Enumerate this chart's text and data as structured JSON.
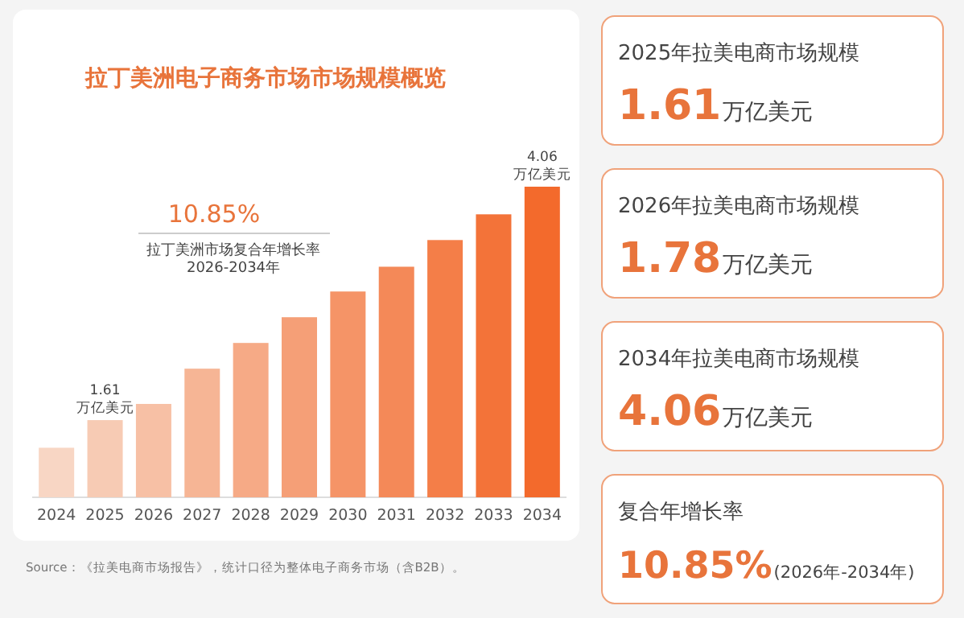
{
  "chart_data": [
    {
      "type": "bar",
      "title": "拉丁美洲电子商务市场市场规模概览",
      "ylim": [
        0.8,
        4.06
      ],
      "tick_labels": "x",
      "categories": [
        "2024",
        "2025",
        "2026",
        "2027",
        "2028",
        "2029",
        "2030",
        "2031",
        "2032",
        "2033",
        "2034"
      ],
      "values": [
        1.32,
        1.61,
        1.78,
        2.15,
        2.42,
        2.69,
        2.96,
        3.22,
        3.5,
        3.77,
        4.06
      ],
      "colors": [
        "#f8d6c4",
        "#f7cbb4",
        "#f7c0a5",
        "#f6b595",
        "#f6aa86",
        "#f59f77",
        "#f59467",
        "#f48958",
        "#f47e48",
        "#f37339",
        "#f36a2c"
      ],
      "value_labels": [
        null,
        "1.61\n万亿美元",
        null,
        null,
        null,
        null,
        null,
        null,
        null,
        null,
        "4.06\n万亿美元"
      ],
      "annotations": [
        "10.85%",
        "拉丁美洲市场复合年增长率\n2026-2034年",
        "Source：《拉美电商市场报告》，统计口径为整体电子商务市场（含B2B）。"
      ]
    },
    {
      "type": "other",
      "annotations": [
        "2025年拉美电商市场规模",
        "1.61万亿美元",
        "2026年拉美电商市场规模",
        "1.78万亿美元",
        "2034年拉美电商市场规模",
        "4.06万亿美元",
        "复合年增长率",
        "10.85%(2026年-2034年)"
      ]
    }
  ]
}
